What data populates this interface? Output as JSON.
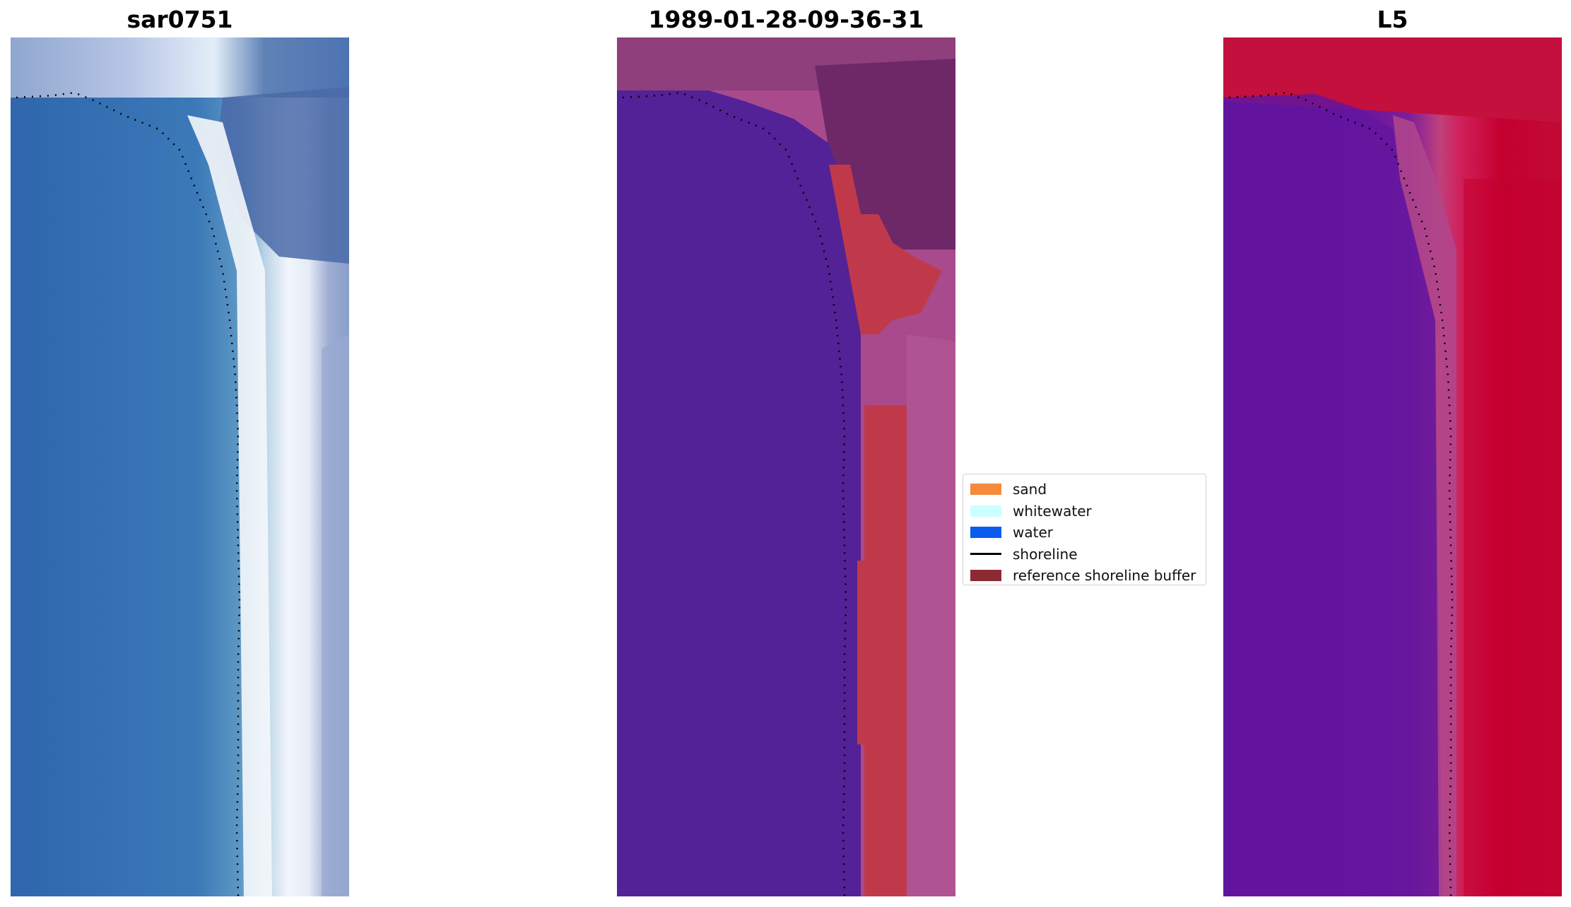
{
  "panels": {
    "left": {
      "title": "sar0751"
    },
    "middle": {
      "title": "1989-01-28-09-36-31"
    },
    "right": {
      "title": "L5"
    }
  },
  "legend": {
    "items": [
      {
        "label": "sand",
        "color": "#f58a3c",
        "kind": "patch"
      },
      {
        "label": "whitewater",
        "color": "#ccffff",
        "kind": "patch"
      },
      {
        "label": "water",
        "color": "#0a5cf0",
        "kind": "patch"
      },
      {
        "label": "shoreline",
        "color": "#000000",
        "kind": "line"
      },
      {
        "label": "reference shoreline buffer",
        "color": "#8b2a30",
        "kind": "patch"
      }
    ]
  },
  "colors": {
    "ocean_rgb": "#3a72b6",
    "whitewater_rgb": "#f2f6fb",
    "land_rgb": "#8f9fc8",
    "classified_water": "#522296",
    "classified_land": "#a84a8c",
    "classified_buffer": "#c0394b",
    "index_low": "#5f12a0",
    "index_high": "#c4002f"
  }
}
